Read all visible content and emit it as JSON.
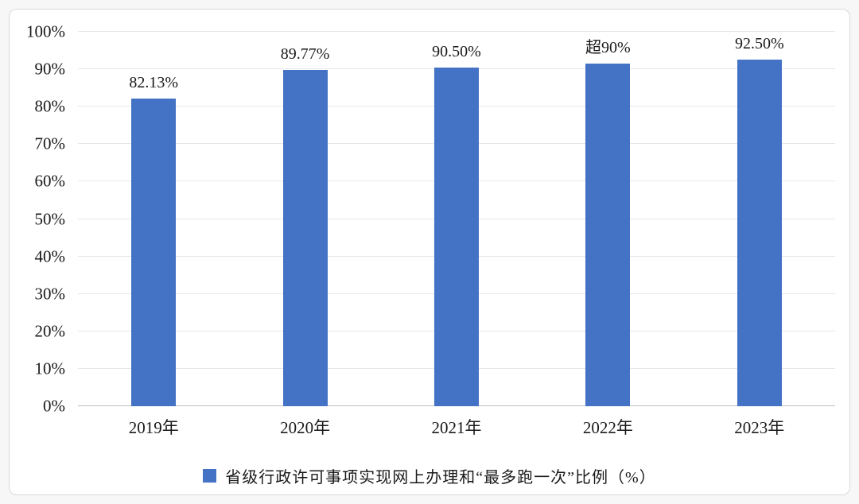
{
  "chart_data": {
    "type": "bar",
    "categories": [
      "2019年",
      "2020年",
      "2021年",
      "2022年",
      "2023年"
    ],
    "values": [
      82.13,
      89.77,
      90.5,
      91.5,
      92.5
    ],
    "bar_labels": [
      "82.13%",
      "89.77%",
      "90.50%",
      "超90%",
      "92.50%"
    ],
    "title": "",
    "xlabel": "",
    "ylabel": "",
    "ylim": [
      0,
      100
    ],
    "yticks": [
      "0%",
      "10%",
      "20%",
      "30%",
      "40%",
      "50%",
      "60%",
      "70%",
      "80%",
      "90%",
      "100%"
    ],
    "grid": true,
    "legend_position": "bottom",
    "legend": {
      "items": [
        "省级行政许可事项实现网上办理和“最多跑一次”比例（%）"
      ]
    },
    "bar_color": "#4472C4"
  },
  "colors": {
    "bar": "#4472C4",
    "gridline": "#e7e7e7",
    "axis_line": "#bdbdbd",
    "text": "#1a1a1a",
    "card_border": "#d9d9d9",
    "card_background": "#ffffff"
  }
}
